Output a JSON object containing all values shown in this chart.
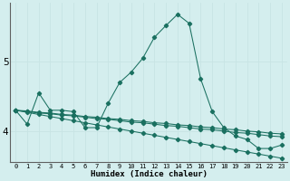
{
  "xlabel": "Humidex (Indice chaleur)",
  "background_color": "#d4eeee",
  "grid_color_minor": "#c8e4e4",
  "grid_color_major": "#b8d8d8",
  "line_color": "#1a7060",
  "x_values": [
    0,
    1,
    2,
    3,
    4,
    5,
    6,
    7,
    8,
    9,
    10,
    11,
    12,
    13,
    14,
    15,
    16,
    17,
    18,
    19,
    20,
    21,
    22,
    23
  ],
  "series": [
    [
      4.3,
      4.1,
      4.55,
      4.3,
      4.3,
      4.28,
      4.05,
      4.05,
      4.4,
      4.7,
      4.85,
      5.05,
      5.35,
      5.52,
      5.68,
      5.55,
      4.75,
      4.28,
      4.05,
      3.93,
      3.88,
      3.75,
      3.75,
      3.8
    ],
    [
      4.3,
      4.28,
      4.26,
      4.25,
      4.23,
      4.22,
      4.2,
      4.18,
      4.17,
      4.15,
      4.13,
      4.12,
      4.1,
      4.08,
      4.07,
      4.05,
      4.03,
      4.02,
      4.0,
      3.98,
      3.97,
      3.95,
      3.93,
      3.92
    ],
    [
      4.3,
      4.27,
      4.24,
      4.21,
      4.18,
      4.15,
      4.12,
      4.09,
      4.06,
      4.03,
      4.0,
      3.97,
      3.94,
      3.91,
      3.88,
      3.85,
      3.82,
      3.79,
      3.76,
      3.73,
      3.7,
      3.67,
      3.64,
      3.61
    ],
    [
      4.3,
      4.29,
      4.27,
      4.26,
      4.24,
      4.23,
      4.21,
      4.2,
      4.18,
      4.17,
      4.15,
      4.14,
      4.12,
      4.11,
      4.09,
      4.08,
      4.06,
      4.05,
      4.03,
      4.02,
      4.0,
      3.99,
      3.97,
      3.96
    ]
  ],
  "ylim": [
    3.55,
    5.85
  ],
  "yticks": [
    4,
    5
  ],
  "xlim": [
    -0.5,
    23.5
  ],
  "figsize": [
    3.2,
    2.0
  ],
  "dpi": 100
}
